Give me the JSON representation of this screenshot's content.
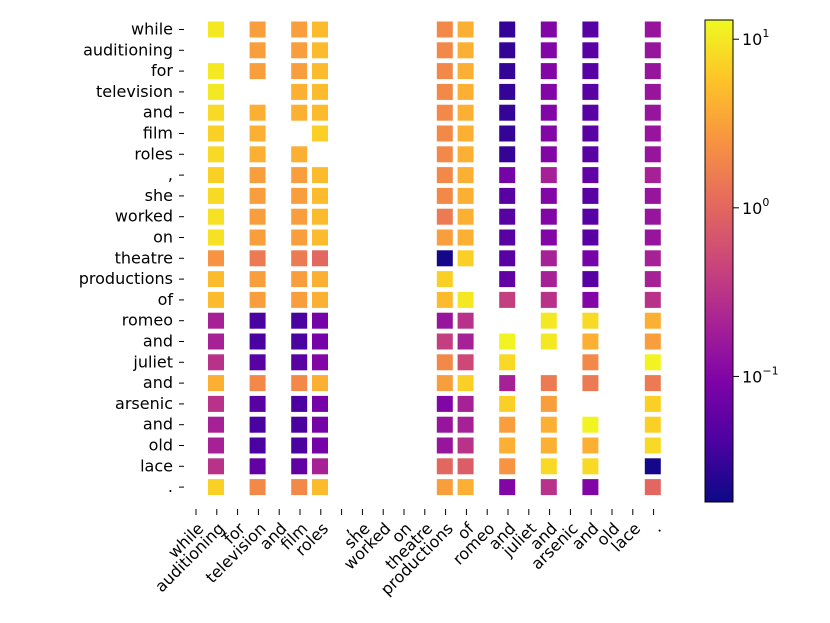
{
  "chart_data": {
    "type": "heatmap",
    "x_tokens": [
      "while",
      "auditioning",
      "for",
      "television",
      "and",
      "film",
      "roles",
      ",",
      "she",
      "worked",
      "on",
      "theatre",
      "productions",
      "of",
      "romeo",
      "and",
      "juliet",
      "and",
      "arsenic",
      "and",
      "old",
      "lace",
      "."
    ],
    "y_tokens": [
      "while",
      "auditioning",
      "for",
      "television",
      "and",
      "film",
      "roles",
      ",",
      "she",
      "worked",
      "on",
      "theatre",
      "productions",
      "of",
      "romeo",
      "and",
      "juliet",
      "and",
      "arsenic",
      "and",
      "old",
      "lace",
      "."
    ],
    "color_scale": "log",
    "colormap": "plasma",
    "vmin": 0.018,
    "vmax": 13,
    "colorbar_ticks": [
      {
        "value": 0.1,
        "label": "10",
        "exp": "−1"
      },
      {
        "value": 1,
        "label": "10",
        "exp": "0"
      },
      {
        "value": 10,
        "label": "10",
        "exp": "1"
      }
    ],
    "values": [
      [
        10,
        null,
        3,
        null,
        3,
        5,
        null,
        null,
        null,
        null,
        null,
        2,
        4,
        null,
        0.03,
        null,
        0.1,
        null,
        0.05,
        null,
        null,
        0.15,
        null
      ],
      [
        null,
        null,
        3,
        null,
        3,
        5,
        null,
        null,
        null,
        null,
        null,
        2,
        4,
        null,
        0.03,
        null,
        0.1,
        null,
        0.05,
        null,
        null,
        0.15,
        null
      ],
      [
        10,
        null,
        3,
        null,
        3,
        5,
        null,
        null,
        null,
        null,
        null,
        2,
        4,
        null,
        0.03,
        null,
        0.1,
        null,
        0.05,
        null,
        null,
        0.15,
        null
      ],
      [
        10,
        null,
        null,
        null,
        4,
        5,
        null,
        null,
        null,
        null,
        null,
        2,
        4,
        null,
        0.03,
        null,
        0.1,
        null,
        0.05,
        null,
        null,
        0.15,
        null
      ],
      [
        8,
        null,
        4,
        null,
        4,
        5,
        null,
        null,
        null,
        null,
        null,
        2,
        4,
        null,
        0.03,
        null,
        0.1,
        null,
        0.05,
        null,
        null,
        0.15,
        null
      ],
      [
        7,
        null,
        4,
        null,
        null,
        7,
        null,
        null,
        null,
        null,
        null,
        2,
        4,
        null,
        0.03,
        null,
        0.1,
        null,
        0.05,
        null,
        null,
        0.15,
        null
      ],
      [
        8,
        null,
        4,
        null,
        4,
        null,
        null,
        null,
        null,
        null,
        null,
        2,
        4,
        null,
        0.03,
        null,
        0.1,
        null,
        0.05,
        null,
        null,
        0.15,
        null
      ],
      [
        7,
        null,
        3,
        null,
        3,
        5,
        null,
        null,
        null,
        null,
        null,
        2,
        4,
        null,
        0.08,
        null,
        0.2,
        null,
        0.06,
        null,
        null,
        0.2,
        null
      ],
      [
        8,
        null,
        3,
        null,
        3,
        5,
        null,
        null,
        null,
        null,
        null,
        2,
        4,
        null,
        0.05,
        null,
        0.1,
        null,
        0.05,
        null,
        null,
        0.15,
        null
      ],
      [
        9,
        null,
        3,
        null,
        3,
        5,
        null,
        null,
        null,
        null,
        null,
        1.5,
        4,
        null,
        0.05,
        null,
        0.1,
        null,
        0.05,
        null,
        null,
        0.15,
        null
      ],
      [
        9,
        null,
        3,
        null,
        3,
        5,
        null,
        null,
        null,
        null,
        null,
        3,
        4,
        null,
        0.05,
        null,
        0.1,
        null,
        0.05,
        null,
        null,
        0.15,
        null
      ],
      [
        2.5,
        null,
        1.5,
        null,
        1.5,
        1,
        null,
        null,
        null,
        null,
        null,
        0.02,
        7,
        null,
        0.05,
        null,
        0.2,
        null,
        0.08,
        null,
        null,
        0.2,
        null
      ],
      [
        5,
        null,
        3,
        null,
        3,
        4,
        null,
        null,
        null,
        null,
        null,
        7,
        null,
        null,
        0.06,
        null,
        0.2,
        null,
        0.05,
        null,
        null,
        0.2,
        null
      ],
      [
        5,
        null,
        3,
        null,
        3,
        4,
        null,
        null,
        null,
        null,
        null,
        5,
        10,
        null,
        0.4,
        null,
        0.3,
        null,
        0.1,
        null,
        null,
        0.3,
        null
      ],
      [
        0.2,
        null,
        0.04,
        null,
        0.04,
        0.08,
        null,
        null,
        null,
        null,
        null,
        0.15,
        0.3,
        null,
        null,
        null,
        10,
        null,
        8,
        null,
        null,
        4,
        null
      ],
      [
        0.2,
        null,
        0.04,
        null,
        0.04,
        0.08,
        null,
        null,
        null,
        null,
        null,
        0.4,
        0.2,
        null,
        12,
        null,
        10,
        null,
        4,
        null,
        null,
        3,
        null
      ],
      [
        0.3,
        null,
        0.05,
        null,
        0.05,
        0.1,
        null,
        null,
        null,
        null,
        null,
        2,
        0.5,
        null,
        8,
        null,
        null,
        null,
        2,
        null,
        null,
        12,
        null
      ],
      [
        4,
        null,
        2,
        null,
        2,
        4,
        null,
        null,
        null,
        null,
        null,
        3,
        7,
        null,
        0.2,
        null,
        1.5,
        null,
        1.5,
        null,
        null,
        1.5,
        null
      ],
      [
        0.3,
        null,
        0.05,
        null,
        0.04,
        0.08,
        null,
        null,
        null,
        null,
        null,
        0.1,
        0.2,
        null,
        7,
        null,
        3,
        null,
        null,
        null,
        null,
        7,
        null
      ],
      [
        0.2,
        null,
        0.04,
        null,
        0.04,
        0.08,
        null,
        null,
        null,
        null,
        null,
        0.15,
        0.2,
        null,
        3,
        null,
        4,
        null,
        12,
        null,
        null,
        7,
        null
      ],
      [
        0.2,
        null,
        0.04,
        null,
        0.04,
        0.08,
        null,
        null,
        null,
        null,
        null,
        0.15,
        0.3,
        null,
        4,
        null,
        4,
        null,
        4,
        null,
        null,
        8,
        null
      ],
      [
        0.3,
        null,
        0.06,
        null,
        0.06,
        0.2,
        null,
        null,
        null,
        null,
        null,
        1,
        0.8,
        null,
        2.5,
        null,
        8,
        null,
        8,
        null,
        null,
        0.02,
        null
      ],
      [
        7,
        null,
        2,
        null,
        2,
        5,
        null,
        null,
        null,
        null,
        null,
        3,
        4,
        null,
        0.1,
        null,
        0.3,
        null,
        0.1,
        null,
        null,
        1,
        null
      ]
    ]
  }
}
